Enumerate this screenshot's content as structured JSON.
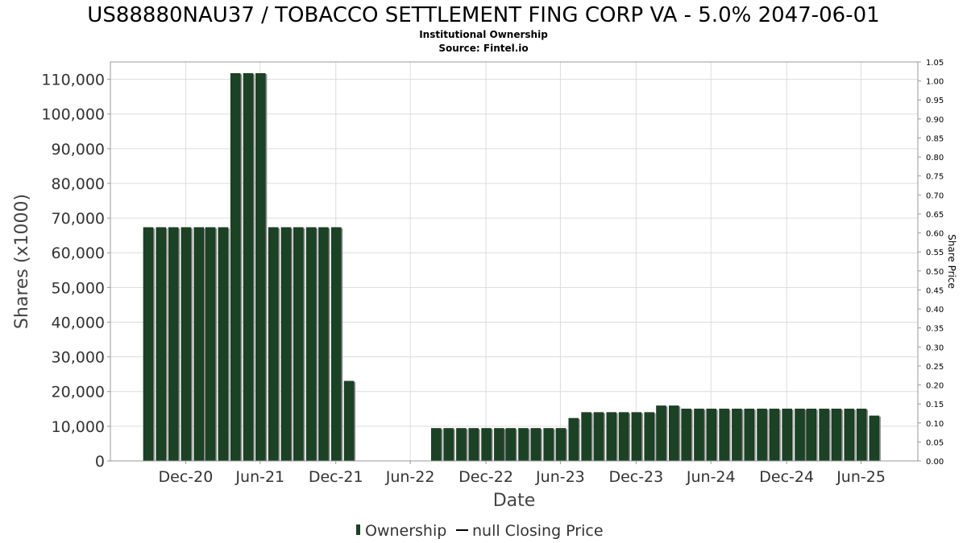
{
  "chart_data": {
    "type": "bar",
    "title": "US88880NAU37 / TOBACCO SETTLEMENT FING CORP VA - 5.0% 2047-06-01",
    "subtitle_lines": [
      "Institutional Ownership",
      "Source: Fintel.io"
    ],
    "xlabel": "Date",
    "ylabel": "Shares (x1000)",
    "y2label": "Share Price",
    "ylim": [
      0,
      115000
    ],
    "y2lim": [
      0,
      1.05
    ],
    "grid": true,
    "legend_position": "bottom-center",
    "y_ticks": [
      "0",
      "10,000",
      "20,000",
      "30,000",
      "40,000",
      "50,000",
      "60,000",
      "70,000",
      "80,000",
      "90,000",
      "100,000",
      "110,000"
    ],
    "y2_ticks": [
      "0.00",
      "0.05",
      "0.10",
      "0.15",
      "0.20",
      "0.25",
      "0.30",
      "0.35",
      "0.40",
      "0.45",
      "0.50",
      "0.55",
      "0.60",
      "0.65",
      "0.70",
      "0.75",
      "0.80",
      "0.85",
      "0.90",
      "0.95",
      "1.00",
      "1.05"
    ],
    "x_ticks": [
      {
        "label": "Dec-20",
        "date": "2020-12-31"
      },
      {
        "label": "Jun-21",
        "date": "2021-06-30"
      },
      {
        "label": "Dec-21",
        "date": "2021-12-31"
      },
      {
        "label": "Jun-22",
        "date": "2022-06-30"
      },
      {
        "label": "Dec-22",
        "date": "2022-12-31"
      },
      {
        "label": "Jun-23",
        "date": "2023-06-30"
      },
      {
        "label": "Dec-23",
        "date": "2023-12-31"
      },
      {
        "label": "Jun-24",
        "date": "2024-06-30"
      },
      {
        "label": "Dec-24",
        "date": "2024-12-31"
      },
      {
        "label": "Jun-25",
        "date": "2025-06-30"
      }
    ],
    "x_range": [
      "2020-07-01",
      "2025-11-15"
    ],
    "series": [
      {
        "name": "Ownership",
        "color": "#1b4224",
        "points": [
          {
            "date": "2020-10-01",
            "value": 67300
          },
          {
            "date": "2020-11-01",
            "value": 67300
          },
          {
            "date": "2020-12-01",
            "value": 67300
          },
          {
            "date": "2021-01-01",
            "value": 67300
          },
          {
            "date": "2021-02-01",
            "value": 67300
          },
          {
            "date": "2021-03-01",
            "value": 67300
          },
          {
            "date": "2021-04-01",
            "value": 67300
          },
          {
            "date": "2021-05-01",
            "value": 111700
          },
          {
            "date": "2021-06-01",
            "value": 111700
          },
          {
            "date": "2021-07-01",
            "value": 111700
          },
          {
            "date": "2021-08-01",
            "value": 67300
          },
          {
            "date": "2021-09-01",
            "value": 67300
          },
          {
            "date": "2021-10-01",
            "value": 67300
          },
          {
            "date": "2021-11-01",
            "value": 67300
          },
          {
            "date": "2021-12-01",
            "value": 67300
          },
          {
            "date": "2022-01-01",
            "value": 67300
          },
          {
            "date": "2022-02-01",
            "value": 23000
          },
          {
            "date": "2022-09-01",
            "value": 9400
          },
          {
            "date": "2022-10-01",
            "value": 9400
          },
          {
            "date": "2022-11-01",
            "value": 9400
          },
          {
            "date": "2022-12-01",
            "value": 9400
          },
          {
            "date": "2023-01-01",
            "value": 9400
          },
          {
            "date": "2023-02-01",
            "value": 9400
          },
          {
            "date": "2023-03-01",
            "value": 9400
          },
          {
            "date": "2023-04-01",
            "value": 9400
          },
          {
            "date": "2023-05-01",
            "value": 9400
          },
          {
            "date": "2023-06-01",
            "value": 9400
          },
          {
            "date": "2023-07-01",
            "value": 9400
          },
          {
            "date": "2023-08-01",
            "value": 12300
          },
          {
            "date": "2023-09-01",
            "value": 14000
          },
          {
            "date": "2023-10-01",
            "value": 14000
          },
          {
            "date": "2023-11-01",
            "value": 14000
          },
          {
            "date": "2023-12-01",
            "value": 14000
          },
          {
            "date": "2024-01-01",
            "value": 14000
          },
          {
            "date": "2024-02-01",
            "value": 14000
          },
          {
            "date": "2024-03-01",
            "value": 15900
          },
          {
            "date": "2024-04-01",
            "value": 15900
          },
          {
            "date": "2024-05-01",
            "value": 15000
          },
          {
            "date": "2024-06-01",
            "value": 15000
          },
          {
            "date": "2024-07-01",
            "value": 15000
          },
          {
            "date": "2024-08-01",
            "value": 15000
          },
          {
            "date": "2024-09-01",
            "value": 15000
          },
          {
            "date": "2024-10-01",
            "value": 15000
          },
          {
            "date": "2024-11-01",
            "value": 15000
          },
          {
            "date": "2024-12-01",
            "value": 15000
          },
          {
            "date": "2025-01-01",
            "value": 15000
          },
          {
            "date": "2025-02-01",
            "value": 15000
          },
          {
            "date": "2025-03-01",
            "value": 15000
          },
          {
            "date": "2025-04-01",
            "value": 15000
          },
          {
            "date": "2025-05-01",
            "value": 15000
          },
          {
            "date": "2025-06-01",
            "value": 15000
          },
          {
            "date": "2025-07-01",
            "value": 15000
          },
          {
            "date": "2025-08-01",
            "value": 13000
          }
        ]
      },
      {
        "name": "null Closing Price",
        "color": "#000000",
        "points": []
      }
    ]
  }
}
